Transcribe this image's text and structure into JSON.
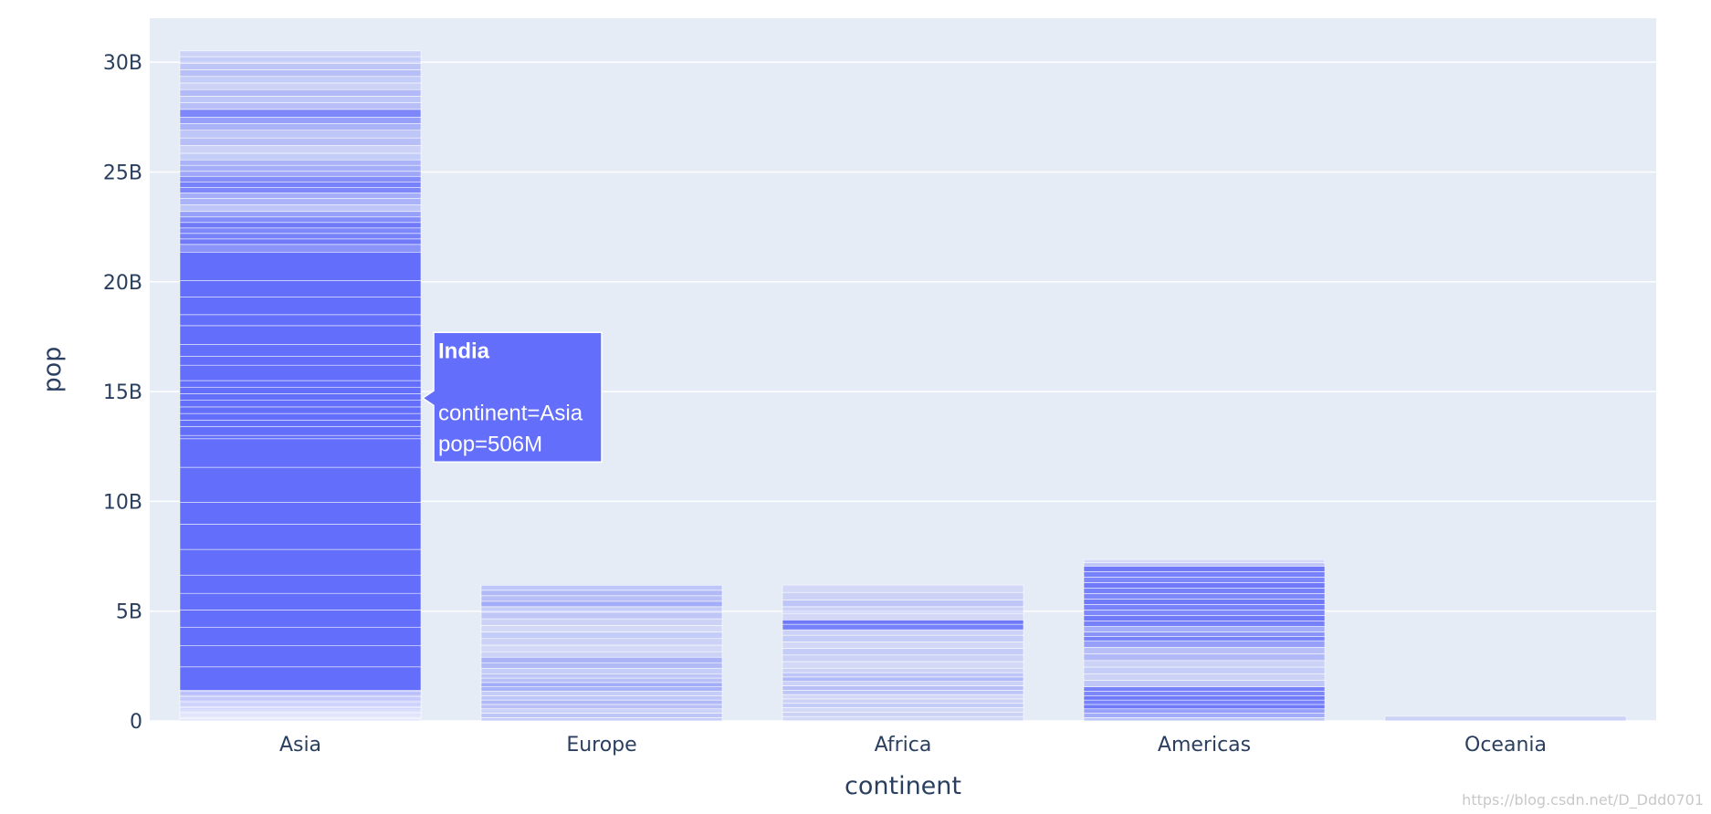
{
  "chart_data": {
    "type": "bar",
    "stacked": true,
    "xlabel": "continent",
    "ylabel": "pop",
    "categories": [
      "Asia",
      "Europe",
      "Africa",
      "Americas",
      "Oceania"
    ],
    "ylim": [
      0,
      32000000000
    ],
    "yticks": [
      {
        "value": 0,
        "label": "0"
      },
      {
        "value": 5000000000,
        "label": "5B"
      },
      {
        "value": 10000000000,
        "label": "10B"
      },
      {
        "value": 15000000000,
        "label": "15B"
      },
      {
        "value": 20000000000,
        "label": "20B"
      },
      {
        "value": 25000000000,
        "label": "25B"
      },
      {
        "value": 30000000000,
        "label": "30B"
      }
    ],
    "totals": [
      30510000000,
      6180000000,
      6190000000,
      7350000000,
      212000000
    ],
    "segments": {
      "Asia": [
        [
          0,
          0.05
        ],
        [
          0.05,
          0.1
        ],
        [
          0.1,
          0.15
        ],
        [
          0.15,
          0.2
        ],
        [
          0.2,
          0.25
        ],
        [
          0.25,
          0.3
        ],
        [
          0.3,
          0.35
        ],
        [
          0.35,
          0.4
        ],
        [
          0.4,
          0.45
        ],
        [
          0.45,
          0.5
        ],
        [
          0.5,
          0.55
        ],
        [
          0.55,
          0.6
        ],
        [
          0.6,
          0.65
        ],
        [
          0.65,
          0.7
        ],
        [
          0.7,
          0.75
        ],
        [
          0.75,
          0.8
        ],
        [
          0.8,
          0.85
        ],
        [
          0.85,
          0.9
        ],
        [
          0.9,
          0.95
        ],
        [
          0.95,
          1.0
        ],
        [
          1.0,
          1.05
        ],
        [
          1.05,
          1.1
        ],
        [
          1.1,
          1.15
        ],
        [
          1.15,
          1.2
        ],
        [
          1.2,
          1.25
        ],
        [
          1.25,
          1.3
        ],
        [
          1.3,
          1.35
        ],
        [
          1.35,
          1.4
        ],
        [
          1.4,
          2.46
        ],
        [
          2.46,
          3.42
        ],
        [
          3.42,
          4.27
        ],
        [
          4.27,
          5.05
        ],
        [
          5.05,
          5.81
        ],
        [
          5.81,
          6.64
        ],
        [
          6.64,
          7.81
        ],
        [
          7.81,
          8.96
        ],
        [
          8.96,
          9.96
        ],
        [
          9.96,
          11.55
        ],
        [
          11.55,
          12.85
        ],
        [
          12.85,
          13.0
        ],
        [
          13.0,
          13.4
        ],
        [
          13.4,
          13.7
        ],
        [
          13.7,
          14.0
        ],
        [
          14.0,
          14.3
        ],
        [
          14.3,
          14.6
        ],
        [
          14.6,
          14.9
        ],
        [
          14.9,
          15.2
        ],
        [
          15.2,
          15.5
        ],
        [
          15.5,
          16.2
        ],
        [
          16.2,
          16.6
        ],
        [
          16.6,
          17.15
        ],
        [
          17.15,
          18.0
        ],
        [
          18.0,
          18.5
        ],
        [
          18.5,
          19.3
        ],
        [
          19.3,
          20.05
        ],
        [
          20.05,
          21.35
        ],
        [
          21.35,
          21.7
        ],
        [
          21.7,
          21.95
        ],
        [
          21.95,
          22.2
        ],
        [
          22.2,
          22.45
        ],
        [
          22.45,
          22.7
        ],
        [
          22.7,
          22.95
        ],
        [
          22.95,
          23.2
        ],
        [
          23.2,
          23.5
        ],
        [
          23.5,
          23.8
        ],
        [
          23.8,
          24.05
        ],
        [
          24.05,
          24.3
        ],
        [
          24.3,
          24.55
        ],
        [
          24.55,
          24.8
        ],
        [
          24.8,
          25.05
        ],
        [
          25.05,
          25.3
        ],
        [
          25.3,
          25.55
        ],
        [
          25.55,
          25.85
        ],
        [
          25.85,
          26.2
        ],
        [
          26.2,
          26.55
        ],
        [
          26.55,
          26.9
        ],
        [
          26.9,
          27.2
        ],
        [
          27.2,
          27.5
        ],
        [
          27.5,
          27.85
        ],
        [
          27.85,
          28.15
        ],
        [
          28.15,
          28.45
        ],
        [
          28.45,
          28.75
        ],
        [
          28.75,
          29.05
        ],
        [
          29.05,
          29.35
        ],
        [
          29.35,
          29.65
        ],
        [
          29.65,
          29.95
        ],
        [
          29.95,
          30.25
        ],
        [
          30.25,
          30.51
        ]
      ],
      "Europe": [
        [
          0,
          0.15
        ],
        [
          0.15,
          0.35
        ],
        [
          0.35,
          0.55
        ],
        [
          0.55,
          0.75
        ],
        [
          0.75,
          0.95
        ],
        [
          0.95,
          1.15
        ],
        [
          1.15,
          1.35
        ],
        [
          1.35,
          1.55
        ],
        [
          1.55,
          1.75
        ],
        [
          1.75,
          1.95
        ],
        [
          1.95,
          2.15
        ],
        [
          2.15,
          2.4
        ],
        [
          2.4,
          2.65
        ],
        [
          2.65,
          2.9
        ],
        [
          2.9,
          3.15
        ],
        [
          3.15,
          3.45
        ],
        [
          3.45,
          3.75
        ],
        [
          3.75,
          4.05
        ],
        [
          4.05,
          4.35
        ],
        [
          4.35,
          4.65
        ],
        [
          4.65,
          4.95
        ],
        [
          4.95,
          5.2
        ],
        [
          5.2,
          5.45
        ],
        [
          5.45,
          5.7
        ],
        [
          5.7,
          5.95
        ],
        [
          5.95,
          6.18
        ]
      ],
      "Africa": [
        [
          0,
          0.2
        ],
        [
          0.2,
          0.4
        ],
        [
          0.4,
          0.6
        ],
        [
          0.6,
          0.8
        ],
        [
          0.8,
          1.0
        ],
        [
          1.0,
          1.2
        ],
        [
          1.2,
          1.4
        ],
        [
          1.4,
          1.6
        ],
        [
          1.6,
          1.8
        ],
        [
          1.8,
          2.0
        ],
        [
          2.0,
          2.2
        ],
        [
          2.2,
          2.4
        ],
        [
          2.4,
          2.7
        ],
        [
          2.7,
          3.0
        ],
        [
          3.0,
          3.3
        ],
        [
          3.3,
          3.6
        ],
        [
          3.6,
          3.9
        ],
        [
          3.9,
          4.15
        ],
        [
          4.15,
          4.4
        ],
        [
          4.4,
          4.6
        ],
        [
          4.6,
          4.9
        ],
        [
          4.9,
          5.2
        ],
        [
          5.2,
          5.5
        ],
        [
          5.5,
          5.85
        ],
        [
          5.85,
          6.19
        ]
      ],
      "Americas": [
        [
          0,
          0.15
        ],
        [
          0.15,
          0.35
        ],
        [
          0.35,
          0.55
        ],
        [
          0.55,
          0.75
        ],
        [
          0.75,
          0.95
        ],
        [
          0.95,
          1.15
        ],
        [
          1.15,
          1.35
        ],
        [
          1.35,
          1.55
        ],
        [
          1.55,
          1.85
        ],
        [
          1.85,
          2.15
        ],
        [
          2.15,
          2.45
        ],
        [
          2.45,
          2.75
        ],
        [
          2.75,
          3.05
        ],
        [
          3.05,
          3.35
        ],
        [
          3.35,
          3.65
        ],
        [
          3.65,
          3.85
        ],
        [
          3.85,
          4.05
        ],
        [
          4.05,
          4.3
        ],
        [
          4.3,
          4.55
        ],
        [
          4.55,
          4.8
        ],
        [
          4.8,
          5.05
        ],
        [
          5.05,
          5.3
        ],
        [
          5.3,
          5.55
        ],
        [
          5.55,
          5.8
        ],
        [
          5.8,
          6.05
        ],
        [
          6.05,
          6.3
        ],
        [
          6.3,
          6.55
        ],
        [
          6.55,
          6.8
        ],
        [
          6.8,
          7.05
        ],
        [
          7.05,
          7.2
        ],
        [
          7.2,
          7.35
        ]
      ],
      "Oceania": [
        [
          0,
          0.212
        ]
      ]
    },
    "segment_unit": "B",
    "segment_intensity": {
      "Asia": [
        0.15,
        0.2,
        0.15,
        0.25,
        0.18,
        0.3,
        0.2,
        0.35,
        0.25,
        0.4,
        0.3,
        0.5,
        0.35,
        0.55,
        0.4,
        0.6,
        0.45,
        0.65,
        0.5,
        0.7,
        0.55,
        0.75,
        0.6,
        0.8,
        0.65,
        0.85,
        0.7,
        0.9,
        1,
        1,
        1,
        1,
        1,
        1,
        1,
        1,
        1,
        1,
        1,
        1,
        1,
        1,
        1,
        1,
        1,
        1,
        1,
        1,
        1,
        1,
        1,
        1,
        1,
        1,
        1,
        1,
        0.7,
        0.9,
        0.85,
        0.8,
        0.9,
        0.75,
        0.6,
        0.3,
        0.45,
        0.5,
        0.8,
        0.85,
        0.75,
        0.55,
        0.5,
        0.45,
        0.25,
        0.2,
        0.35,
        0.3,
        0.45,
        0.6,
        0.8,
        0.35,
        0.3,
        0.4,
        0.2,
        0.25,
        0.35,
        0.3,
        0.25,
        0.2
      ],
      "Europe": [
        0.25,
        0.3,
        0.2,
        0.35,
        0.4,
        0.3,
        0.25,
        0.45,
        0.5,
        0.35,
        0.3,
        0.25,
        0.4,
        0.45,
        0.2,
        0.15,
        0.2,
        0.25,
        0.15,
        0.2,
        0.3,
        0.25,
        0.5,
        0.35,
        0.4,
        0.3
      ],
      "Africa": [
        0.15,
        0.2,
        0.15,
        0.25,
        0.2,
        0.15,
        0.3,
        0.35,
        0.2,
        0.4,
        0.3,
        0.2,
        0.15,
        0.2,
        0.25,
        0.15,
        0.25,
        0.2,
        0.85,
        0.9,
        0.15,
        0.2,
        0.3,
        0.2,
        0.15
      ],
      "Americas": [
        0.3,
        0.5,
        0.6,
        0.9,
        0.85,
        0.9,
        0.8,
        0.85,
        0.3,
        0.2,
        0.25,
        0.2,
        0.4,
        0.35,
        0.6,
        0.85,
        0.7,
        0.5,
        0.85,
        0.9,
        0.8,
        0.85,
        0.9,
        0.8,
        0.85,
        0.9,
        0.8,
        0.85,
        0.9,
        0.3,
        0.15
      ],
      "Oceania": [
        0.2
      ]
    },
    "bar_color": "#636efa",
    "plot_bg": "#e5ecf6",
    "grid_color": "#ffffff",
    "grid": true,
    "tooltip": {
      "category": "Asia",
      "title": "India",
      "lines": [
        "continent=Asia",
        "pop=506M"
      ],
      "y_value": 14700000000
    }
  },
  "watermark": "https://blog.csdn.net/D_Ddd0701"
}
